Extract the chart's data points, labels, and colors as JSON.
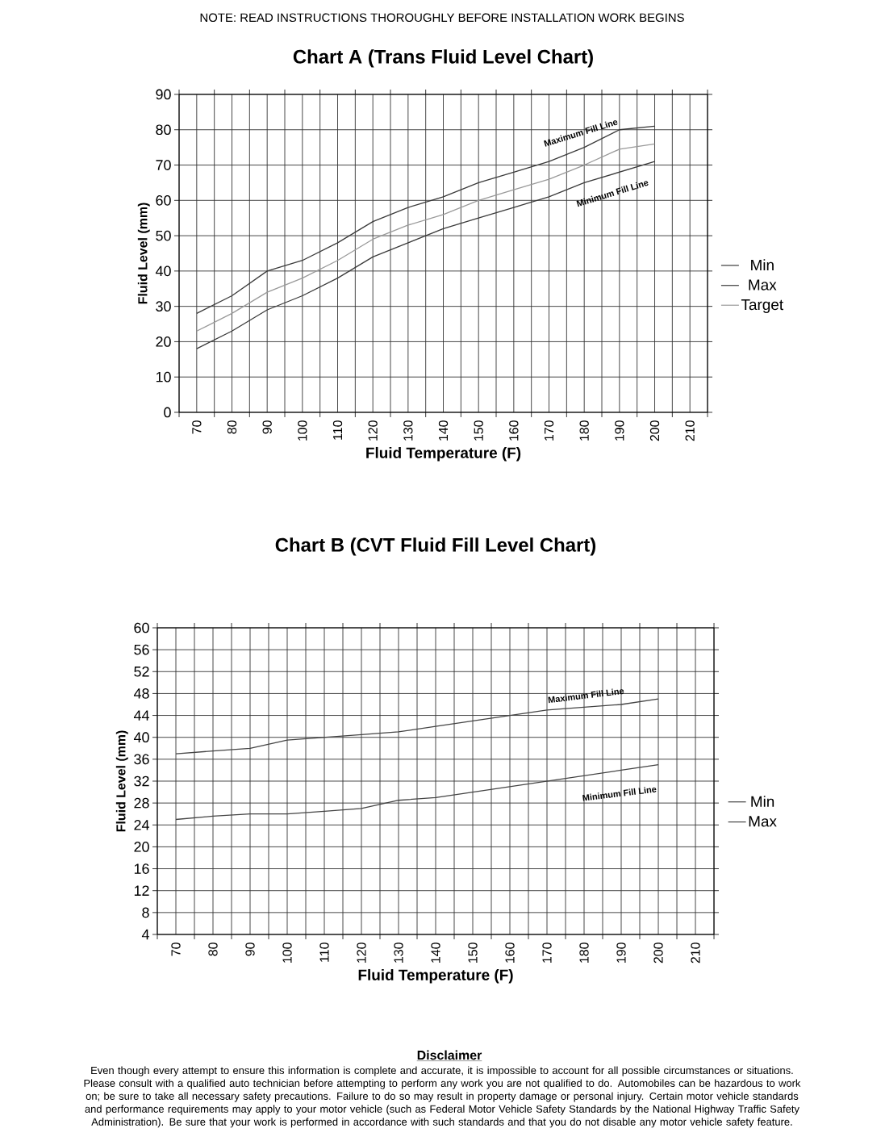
{
  "chart_data": [
    {
      "type": "line",
      "title": "Chart A (Trans Fluid Level Chart)",
      "xlabel": "Fluid Temperature (F)",
      "ylabel": "Fluid Level (mm)",
      "categories": [
        "70",
        "80",
        "90",
        "100",
        "110",
        "120",
        "130",
        "140",
        "150",
        "160",
        "170",
        "180",
        "190",
        "200",
        "210"
      ],
      "series": [
        {
          "name": "Min",
          "color": "#3a3a3a",
          "values": [
            18,
            23,
            29,
            33,
            38,
            44,
            48,
            52,
            55,
            58,
            61,
            65,
            68,
            71,
            null
          ]
        },
        {
          "name": "Max",
          "color": "#3a3a3a",
          "values": [
            28,
            33,
            40,
            43,
            48,
            54,
            58,
            61,
            65,
            68,
            71,
            75,
            80,
            81,
            null
          ]
        },
        {
          "name": "Target",
          "color": "#999999",
          "values": [
            23,
            28,
            34,
            38,
            43,
            49,
            53,
            56,
            60,
            63,
            66,
            70,
            74.5,
            76,
            null
          ]
        }
      ],
      "ylim": [
        0,
        90
      ],
      "yticks": [
        0,
        10,
        20,
        30,
        40,
        50,
        60,
        70,
        80,
        90
      ],
      "grid": true,
      "legend": "right",
      "annotations": [
        "NOTE: READ INSTRUCTIONS THOROUGHLY BEFORE INSTALLATION WORK BEGINS",
        "Maximum Fill Line",
        "Minimum Fill Line"
      ]
    },
    {
      "type": "line",
      "title": "Chart B (CVT Fluid Fill Level Chart)",
      "xlabel": "Fluid Temperature (F)",
      "ylabel": "Fluid Level (mm)",
      "categories": [
        "70",
        "80",
        "90",
        "100",
        "110",
        "120",
        "130",
        "140",
        "150",
        "160",
        "170",
        "180",
        "190",
        "200",
        "210"
      ],
      "series": [
        {
          "name": "Min",
          "color": "#444444",
          "values": [
            25,
            25.6,
            26,
            26,
            26.5,
            27,
            28.5,
            29,
            30,
            31,
            32,
            33,
            34,
            35,
            null
          ]
        },
        {
          "name": "Max",
          "color": "#444444",
          "values": [
            37,
            37.5,
            38,
            39.5,
            40,
            40.5,
            41,
            42,
            43,
            44,
            45,
            45.5,
            46,
            47,
            null
          ]
        }
      ],
      "ylim": [
        4,
        60
      ],
      "yticks": [
        4,
        8,
        12,
        16,
        20,
        24,
        28,
        32,
        36,
        40,
        44,
        48,
        52,
        56,
        60
      ],
      "grid": true,
      "legend": "right",
      "annotations": [
        "Disclaimer",
        "Even though every attempt to ensure this information is complete and accurate, it is impossible to account for all possible circumstances or situations.  Please consult with a qualified auto technician before attempting to perform any work you are not qualified to do.  Automobiles can be hazardous to work on; be sure to take all necessary safety precautions.  Failure to do so may result in property damage or personal injury.  Certain motor vehicle standards and performance requirements may apply to your motor vehicle (such as Federal Motor Vehicle Safety Standards by the National Highway Traffic Safety Administration).  Be sure that your work is performed in accordance with such standards and that you do not disable any motor vehicle safety feature.",
        "Maximum Fill Line",
        "Minimum Fill Line"
      ]
    }
  ]
}
